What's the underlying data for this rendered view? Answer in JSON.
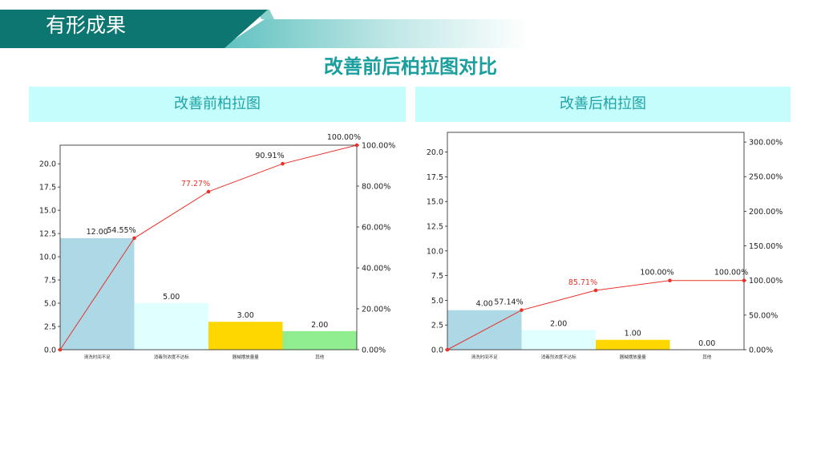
{
  "header": {
    "title": "有形成果"
  },
  "main_title": "改善前后柏拉图对比",
  "chart_data": [
    {
      "type": "bar",
      "panel_title": "改善前柏拉图",
      "categories": [
        "清洗时间不足",
        "消毒剂浓度不达标",
        "器械摆放量量",
        "其他"
      ],
      "values": [
        12,
        5,
        3,
        2
      ],
      "value_labels": [
        "12.00",
        "5.00",
        "3.00",
        "2.00"
      ],
      "bar_colors": [
        "#add8e6",
        "#e0ffff",
        "#ffd700",
        "#90ee90"
      ],
      "cumulative": {
        "x": [
          0,
          1,
          2,
          3,
          4
        ],
        "values": [
          0,
          54.55,
          77.27,
          90.91,
          100
        ],
        "labels": [
          "",
          "54.55%",
          "77.27%",
          "90.91%",
          "100.00%"
        ],
        "color": "#e8322a",
        "highlight_index": 2,
        "highlight_color": "#e8322a"
      },
      "ylim": [
        0,
        22
      ],
      "yticks": [
        0,
        2.5,
        5,
        7.5,
        10,
        12.5,
        15,
        17.5,
        20
      ],
      "ytick_labels": [
        "0.0",
        "2.5",
        "5.0",
        "7.5",
        "10.0",
        "12.5",
        "15.0",
        "17.5",
        "20.0"
      ],
      "y2lim": [
        0,
        100
      ],
      "y2ticks": [
        0,
        20,
        40,
        60,
        80,
        100
      ],
      "y2tick_labels": [
        "0.00%",
        "20.00%",
        "40.00%",
        "60.00%",
        "80.00%",
        "100.00%"
      ]
    },
    {
      "type": "bar",
      "panel_title": "改善后柏拉图",
      "categories": [
        "清洗时间不足",
        "消毒剂浓度不达标",
        "器械摆放量量",
        "其他"
      ],
      "values": [
        4,
        2,
        1,
        0
      ],
      "value_labels": [
        "4.00",
        "2.00",
        "1.00",
        "0.00"
      ],
      "bar_colors": [
        "#add8e6",
        "#e0ffff",
        "#ffd700",
        "#90ee90"
      ],
      "cumulative": {
        "x": [
          0,
          1,
          2,
          3,
          4
        ],
        "values": [
          0,
          57.14,
          85.71,
          100,
          100
        ],
        "labels": [
          "",
          "57.14%",
          "85.71%",
          "100.00%",
          "100.00%"
        ],
        "color": "#e8322a",
        "highlight_index": 2,
        "highlight_color": "#e8322a"
      },
      "ylim": [
        0,
        22
      ],
      "yticks": [
        0,
        2.5,
        5,
        7.5,
        10,
        12.5,
        15,
        17.5,
        20
      ],
      "ytick_labels": [
        "0.0",
        "2.5",
        "5.0",
        "7.5",
        "10.0",
        "12.5",
        "15.0",
        "17.5",
        "20.0"
      ],
      "y2lim": [
        0,
        314
      ],
      "y2ticks": [
        0,
        50,
        100,
        150,
        200,
        250,
        300
      ],
      "y2tick_labels": [
        "0.00%",
        "50.00%",
        "100.00%",
        "150.00%",
        "200.00%",
        "250.00%",
        "300.00%"
      ]
    }
  ]
}
